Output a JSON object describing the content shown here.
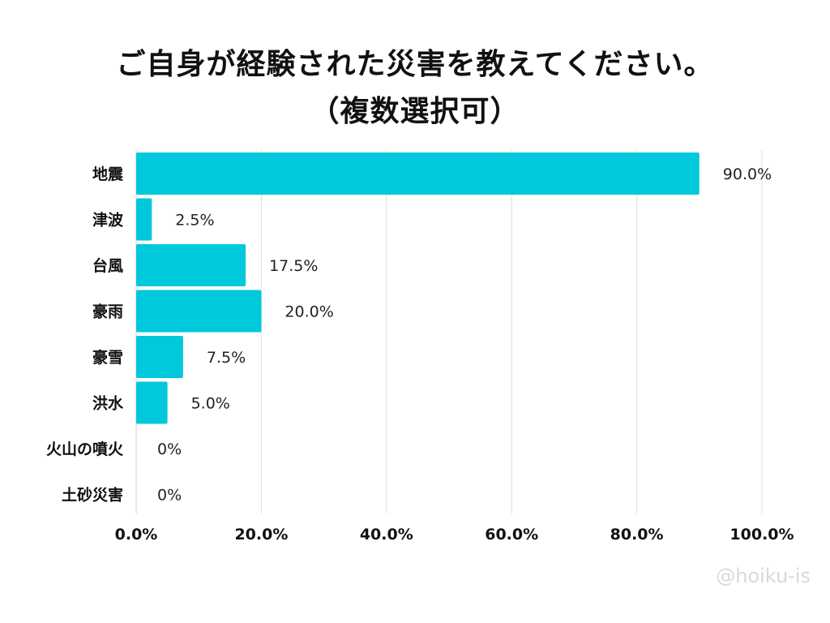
{
  "title_line1": "ご自身が経験された災害を教えてください。",
  "title_line2": "（複数選択可）",
  "watermark": "@hoiku-is",
  "chart_data": {
    "type": "bar",
    "orientation": "horizontal",
    "categories": [
      "地震",
      "津波",
      "台風",
      "豪雨",
      "豪雪",
      "洪水",
      "火山の噴火",
      "土砂災害"
    ],
    "values": [
      90.0,
      2.5,
      17.5,
      20.0,
      7.5,
      5.0,
      0,
      0
    ],
    "data_labels": [
      "90.0%",
      "2.5%",
      "17.5%",
      "20.0%",
      "7.5%",
      "5.0%",
      "0%",
      "0%"
    ],
    "x_ticks": [
      "0.0%",
      "20.0%",
      "40.0%",
      "60.0%",
      "80.0%",
      "100.0%"
    ],
    "xlim": [
      0,
      100
    ],
    "grid": true,
    "bar_color": "#00c9dc"
  }
}
